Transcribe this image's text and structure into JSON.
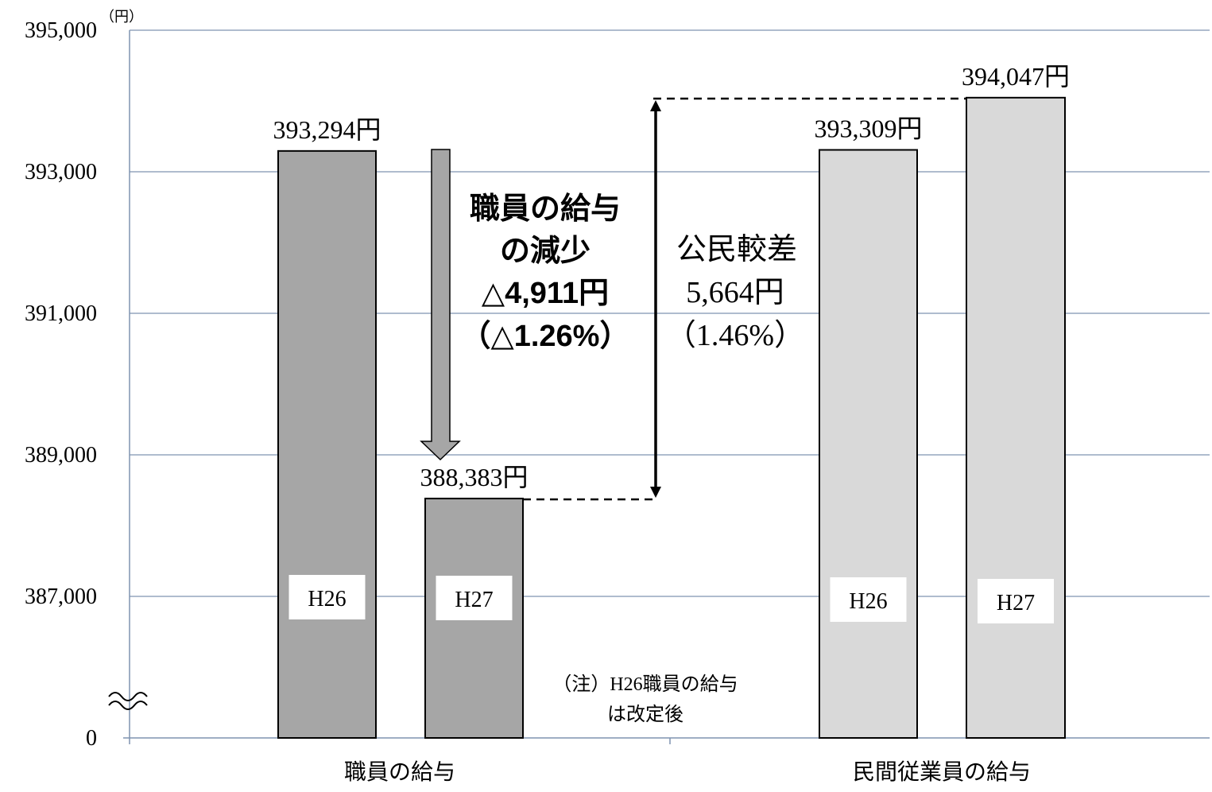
{
  "chart_data": {
    "type": "bar",
    "y_unit": "（円）",
    "y_ticks": [
      "395,000",
      "393,000",
      "391,000",
      "389,000",
      "387,000",
      "0"
    ],
    "ylim": [
      385000,
      395000
    ],
    "axis_break": true,
    "grid": true,
    "categories": [
      "職員の給与",
      "民間従業員の給与"
    ],
    "bars": [
      {
        "group": "職員の給与",
        "period": "H26",
        "value": 393294,
        "label": "393,294円",
        "color": "#a6a6a6"
      },
      {
        "group": "職員の給与",
        "period": "H27",
        "value": 388383,
        "label": "388,383円",
        "color": "#a6a6a6"
      },
      {
        "group": "民間従業員の給与",
        "period": "H26",
        "value": 393309,
        "label": "393,309円",
        "color": "#d9d9d9"
      },
      {
        "group": "民間従業員の給与",
        "period": "H27",
        "value": 394047,
        "label": "394,047円",
        "color": "#d9d9d9"
      }
    ]
  },
  "annotations": {
    "decrease": {
      "line1": "職員の給与",
      "line2": "の減少",
      "line3": "△4,911円",
      "line4": "（△1.26%）"
    },
    "gap": {
      "line1": "公民較差",
      "line2": "5,664円",
      "line3": "（1.46%）"
    },
    "note": {
      "line1": "（注）H26職員の給与",
      "line2": "は改定後"
    }
  }
}
